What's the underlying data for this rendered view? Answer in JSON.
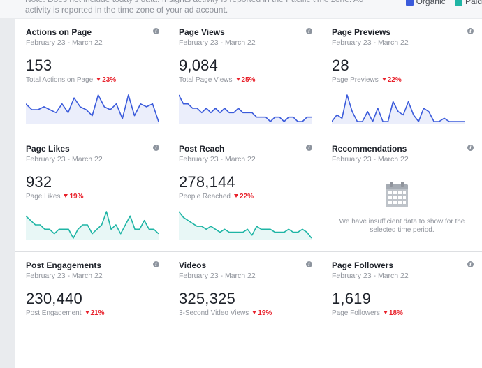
{
  "notice": "Note: Does not include today's data. Insights activity is reported in the Pacific time zone. Ad activity is reported in the time zone of your ad account.",
  "legend": [
    {
      "label": "Organic",
      "color": "#3b5bdb"
    },
    {
      "label": "Paid",
      "color": "#1fb5a5"
    }
  ],
  "colors": {
    "blue": "#3b5bdb",
    "teal": "#1fb5a5",
    "decline": "#e8202a"
  },
  "cards": [
    {
      "title": "Actions on Page",
      "range": "February 23 - March 22",
      "value": "153",
      "sub": "Total Actions on Page",
      "pct": "23%",
      "color": "#3b5bdb",
      "spark": [
        7,
        5,
        5,
        6,
        5,
        4,
        7,
        4,
        9,
        6,
        5,
        3,
        10,
        6,
        5,
        7,
        2,
        10,
        3,
        7,
        6,
        7,
        1
      ]
    },
    {
      "title": "Page Views",
      "range": "February 23 - March 22",
      "value": "9,084",
      "sub": "Total Page Views",
      "pct": "25%",
      "color": "#3b5bdb",
      "spark": [
        9,
        7,
        7,
        6,
        6,
        5,
        6,
        5,
        6,
        5,
        6,
        5,
        5,
        6,
        5,
        5,
        5,
        4,
        4,
        4,
        3,
        4,
        4,
        3,
        4,
        4,
        3,
        3,
        4,
        4
      ]
    },
    {
      "title": "Page Previews",
      "range": "February 23 - March 22",
      "value": "28",
      "sub": "Page Previews",
      "pct": "22%",
      "color": "#3b5bdb",
      "spark": [
        0,
        2,
        1,
        8,
        3,
        0,
        0,
        3,
        0,
        4,
        0,
        0,
        6,
        3,
        2,
        6,
        2,
        0,
        4,
        3,
        0,
        0,
        1,
        0,
        0,
        0,
        0
      ]
    },
    {
      "title": "Page Likes",
      "range": "February 23 - March 22",
      "value": "932",
      "sub": "Page Likes",
      "pct": "19%",
      "color": "#1fb5a5",
      "spark": [
        6,
        5,
        4,
        4,
        3,
        3,
        2,
        3,
        3,
        3,
        1,
        3,
        4,
        4,
        2,
        3,
        4,
        7,
        3,
        4,
        2,
        4,
        6,
        3,
        3,
        5,
        3,
        3,
        2
      ]
    },
    {
      "title": "Post Reach",
      "range": "February 23 - March 22",
      "value": "278,144",
      "sub": "People Reached",
      "pct": "22%",
      "color": "#1fb5a5",
      "spark": [
        10,
        8,
        7,
        6,
        5,
        5,
        4,
        5,
        4,
        3,
        4,
        3,
        3,
        3,
        3,
        4,
        2,
        5,
        4,
        4,
        4,
        3,
        3,
        3,
        4,
        3,
        3,
        4,
        3,
        1
      ]
    },
    {
      "title": "Recommendations",
      "range": "February 23 - March 22",
      "empty": "We have insufficient data to show for the selected time period."
    },
    {
      "title": "Post Engagements",
      "range": "February 23 - March 22",
      "value": "230,440",
      "sub": "Post Engagement",
      "pct": "21%"
    },
    {
      "title": "Videos",
      "range": "February 23 - March 22",
      "value": "325,325",
      "sub": "3-Second Video Views",
      "pct": "19%"
    },
    {
      "title": "Page Followers",
      "range": "February 23 - March 22",
      "value": "1,619",
      "sub": "Page Followers",
      "pct": "18%"
    }
  ]
}
